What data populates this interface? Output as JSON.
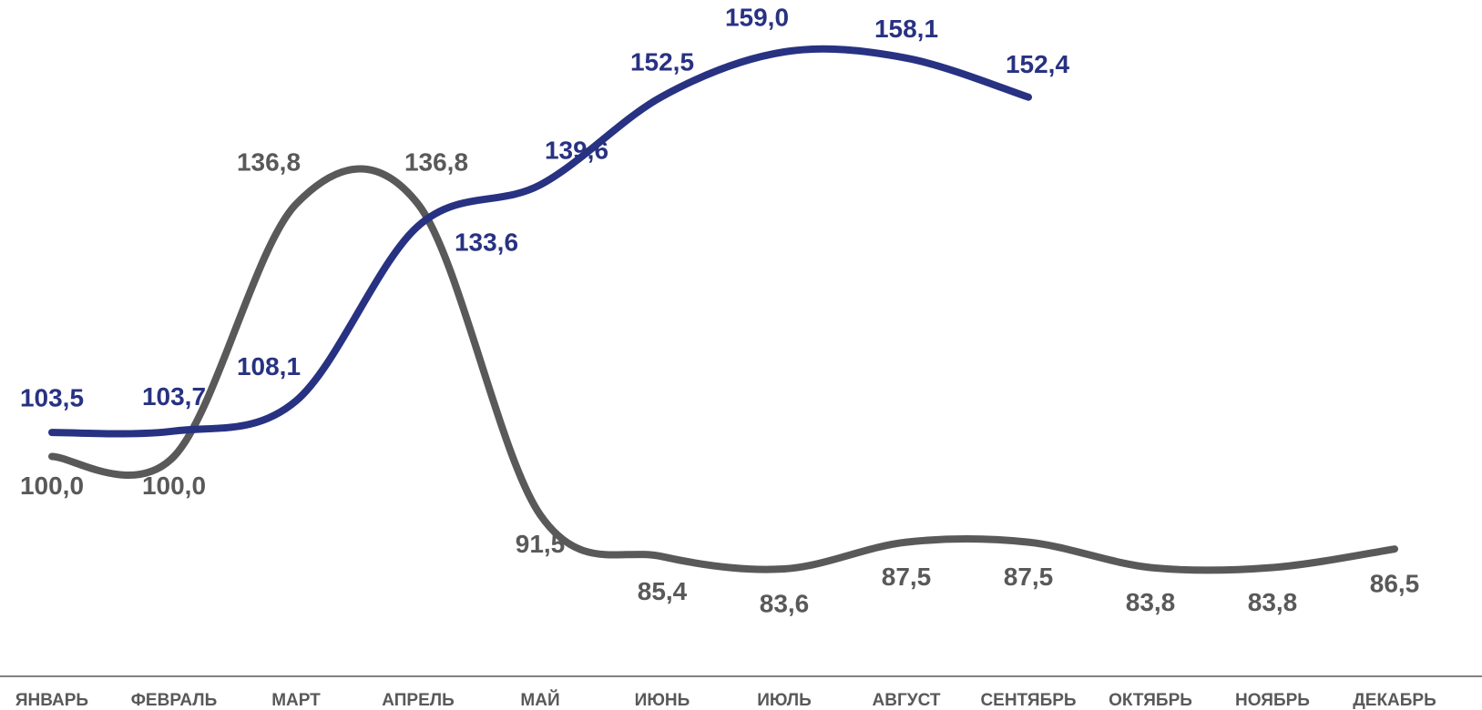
{
  "chart_data": {
    "type": "line",
    "categories": [
      "ЯНВАРЬ",
      "ФЕВРАЛЬ",
      "МАРТ",
      "АПРЕЛЬ",
      "МАЙ",
      "ИЮНЬ",
      "ИЮЛЬ",
      "АВГУСТ",
      "СЕНТЯБРЬ",
      "ОКТЯБРЬ",
      "НОЯБРЬ",
      "ДЕКАБРЬ"
    ],
    "series": [
      {
        "color": "#595959",
        "values": [
          100.0,
          100.0,
          136.8,
          136.8,
          91.5,
          85.4,
          83.6,
          87.5,
          87.5,
          83.8,
          83.8,
          86.5
        ],
        "value_labels": [
          "100,0",
          "100,0",
          "136,8",
          "136,8",
          "91,5",
          "85,4",
          "83,6",
          "87,5",
          "87,5",
          "83,8",
          "83,8",
          "86,5"
        ]
      },
      {
        "color": "#283282",
        "values": [
          103.5,
          103.7,
          108.1,
          133.6,
          139.6,
          152.5,
          159.0,
          158.1,
          152.4,
          null,
          null,
          null
        ],
        "value_labels": [
          "103,5",
          "103,7",
          "108,1",
          "133,6",
          "139,6",
          "152,5",
          "159,0",
          "158,1",
          "152,4",
          null,
          null,
          null
        ]
      }
    ]
  }
}
